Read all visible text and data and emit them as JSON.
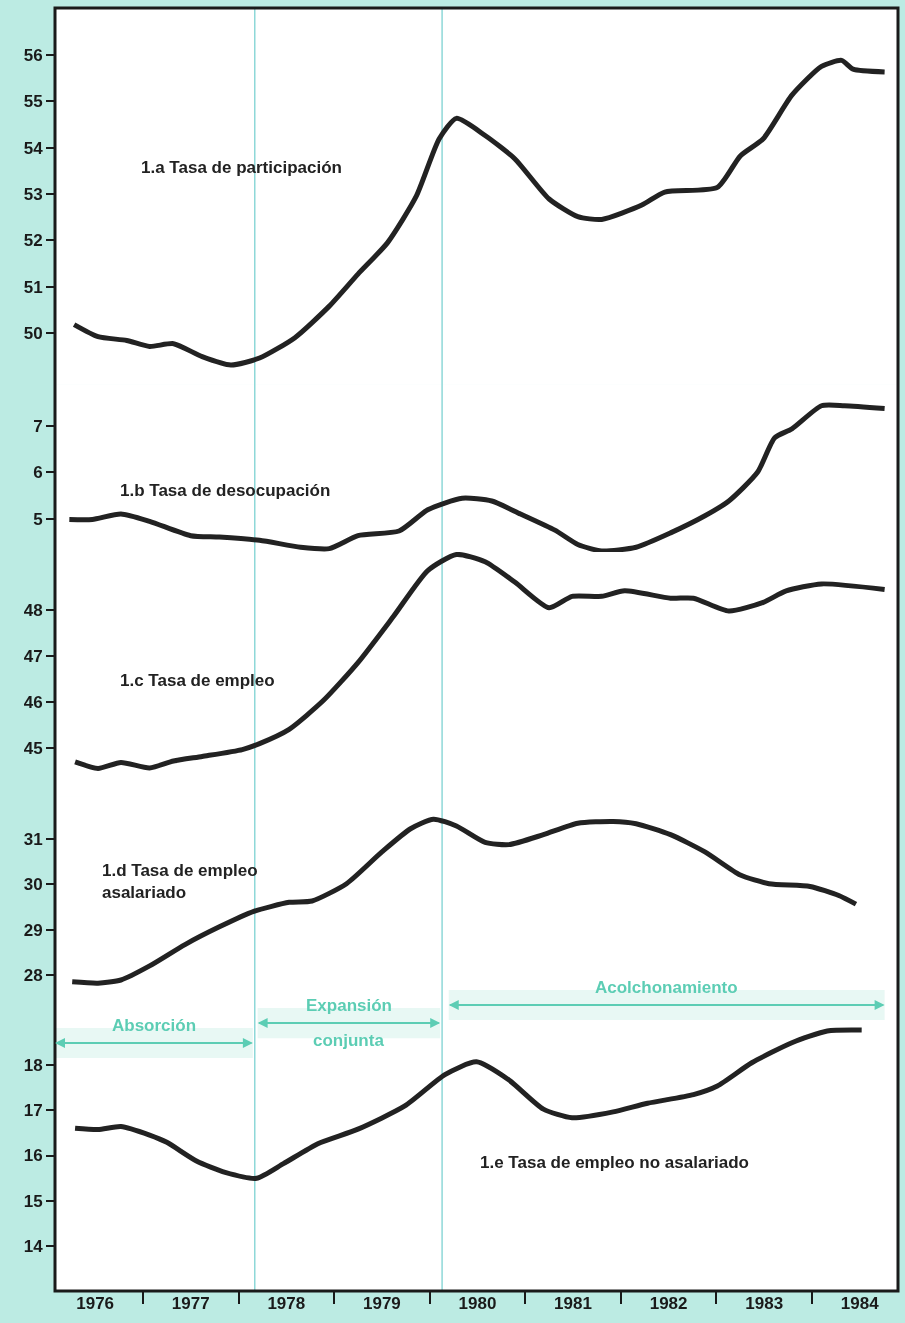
{
  "chart_data": [
    {
      "type": "line",
      "xlim": [
        1976.08,
        1984.9
      ],
      "ylim": [
        48.88,
        57.01
      ],
      "yticks": [
        50,
        51,
        52,
        53,
        54,
        55,
        56
      ],
      "tick_labels": "y",
      "grid": false,
      "legend": false,
      "marker": "none",
      "line_style": "solid",
      "series": [
        {
          "name": "1.a Tasa de participación",
          "color": "#222222",
          "x": [
            1976.28,
            1976.53,
            1976.83,
            1977.07,
            1977.32,
            1977.62,
            1977.92,
            1978.22,
            1978.59,
            1978.95,
            1979.25,
            1979.56,
            1979.86,
            1980.1,
            1980.28,
            1980.58,
            1980.89,
            1981.25,
            1981.55,
            1981.8,
            1982.22,
            1982.46,
            1983.01,
            1983.25,
            1983.49,
            1983.79,
            1984.1,
            1984.31,
            1984.43,
            1984.76
          ],
          "values": [
            50.18,
            49.92,
            49.84,
            49.71,
            49.77,
            49.49,
            49.31,
            49.46,
            49.9,
            50.58,
            51.27,
            51.95,
            52.95,
            54.19,
            54.63,
            54.26,
            53.76,
            52.89,
            52.51,
            52.45,
            52.76,
            53.04,
            53.14,
            53.82,
            54.19,
            55.13,
            55.75,
            55.88,
            55.69,
            55.63
          ]
        }
      ],
      "ref_lines": [
        {
          "axis": "x",
          "value": 1978.17,
          "color": "#8ed8d8"
        },
        {
          "axis": "x",
          "value": 1980.13,
          "color": "#8ed8d8"
        }
      ]
    },
    {
      "type": "line",
      "xlim": [
        1976.08,
        1984.9
      ],
      "ylim": [
        4.277,
        7.89
      ],
      "yticks": [
        5,
        6,
        7
      ],
      "tick_labels": "y",
      "grid": false,
      "legend": false,
      "marker": "none",
      "line_style": "solid",
      "series": [
        {
          "name": "1.b Tasa de desocupación",
          "color": "#222222",
          "x": [
            1976.23,
            1976.47,
            1976.77,
            1977.07,
            1977.5,
            1977.8,
            1978.22,
            1978.65,
            1978.95,
            1979.25,
            1979.68,
            1979.98,
            1980.34,
            1980.65,
            1980.95,
            1981.31,
            1981.55,
            1981.8,
            1982.16,
            1982.52,
            1982.88,
            1983.13,
            1983.43,
            1983.61,
            1983.79,
            1984.1,
            1984.34,
            1984.76
          ],
          "values": [
            4.98,
            4.98,
            5.1,
            4.94,
            4.63,
            4.6,
            4.53,
            4.38,
            4.35,
            4.63,
            4.73,
            5.19,
            5.44,
            5.38,
            5.1,
            4.75,
            4.44,
            4.3,
            4.38,
            4.69,
            5.06,
            5.38,
            6.0,
            6.75,
            6.94,
            7.44,
            7.44,
            7.38
          ]
        }
      ],
      "ref_lines": [
        {
          "axis": "x",
          "value": 1978.17,
          "color": "#8ed8d8"
        },
        {
          "axis": "x",
          "value": 1980.13,
          "color": "#8ed8d8"
        }
      ]
    },
    {
      "type": "line",
      "xlim": [
        1976.08,
        1984.9
      ],
      "ylim": [
        43.95,
        49.254
      ],
      "yticks": [
        45,
        46,
        47,
        48
      ],
      "tick_labels": "y",
      "grid": false,
      "legend": false,
      "marker": "none",
      "line_style": "solid",
      "series": [
        {
          "name": "1.c Tasa de empleo",
          "color": "#222222",
          "x": [
            1976.29,
            1976.53,
            1976.77,
            1977.07,
            1977.32,
            1977.62,
            1978.04,
            1978.22,
            1978.53,
            1978.89,
            1979.25,
            1979.62,
            1979.98,
            1980.28,
            1980.58,
            1980.89,
            1981.25,
            1981.49,
            1981.8,
            1982.04,
            1982.52,
            1982.76,
            1983.13,
            1983.49,
            1983.73,
            1984.1,
            1984.76
          ],
          "values": [
            44.69,
            44.55,
            44.68,
            44.56,
            44.71,
            44.81,
            44.96,
            45.09,
            45.4,
            46.03,
            46.85,
            47.85,
            48.85,
            49.2,
            49.04,
            48.6,
            48.04,
            48.29,
            48.29,
            48.41,
            48.25,
            48.25,
            47.97,
            48.16,
            48.41,
            48.56,
            48.44
          ]
        }
      ],
      "ref_lines": [
        {
          "axis": "x",
          "value": 1978.17,
          "color": "#8ed8d8"
        },
        {
          "axis": "x",
          "value": 1980.13,
          "color": "#8ed8d8"
        }
      ]
    },
    {
      "type": "line",
      "xlim": [
        1976.08,
        1984.9
      ],
      "ylim": [
        27.67,
        31.94
      ],
      "yticks": [
        28,
        29,
        30,
        31
      ],
      "tick_labels": "y",
      "grid": false,
      "legend": false,
      "marker": "none",
      "line_style": "solid",
      "series": [
        {
          "name": "1.d Tasa de empleo\nasalariado",
          "color": "#222222",
          "x": [
            1976.26,
            1976.53,
            1976.77,
            1977.07,
            1977.44,
            1977.8,
            1978.16,
            1978.53,
            1978.77,
            1979.13,
            1979.5,
            1979.8,
            1980.04,
            1980.28,
            1980.58,
            1980.83,
            1981.19,
            1981.55,
            1981.92,
            1982.16,
            1982.52,
            1982.88,
            1983.25,
            1983.55,
            1983.98,
            1984.28,
            1984.46
          ],
          "values": [
            27.85,
            27.82,
            27.89,
            28.2,
            28.67,
            29.06,
            29.4,
            29.6,
            29.63,
            30.01,
            30.71,
            31.22,
            31.43,
            31.28,
            30.92,
            30.87,
            31.09,
            31.34,
            31.38,
            31.33,
            31.09,
            30.71,
            30.2,
            30.01,
            29.95,
            29.75,
            29.56
          ]
        }
      ],
      "ref_lines": [
        {
          "axis": "x",
          "value": 1978.17,
          "color": "#8ed8d8"
        },
        {
          "axis": "x",
          "value": 1980.13,
          "color": "#8ed8d8"
        }
      ]
    },
    {
      "type": "line",
      "xlim": [
        1976.08,
        1984.9
      ],
      "xticks": [
        {
          "value": 1976.5,
          "label": "1976"
        },
        {
          "value": 1977.5,
          "label": "1977"
        },
        {
          "value": 1978.5,
          "label": "1978"
        },
        {
          "value": 1979.5,
          "label": "1979"
        },
        {
          "value": 1980.5,
          "label": "1980"
        },
        {
          "value": 1981.5,
          "label": "1981"
        },
        {
          "value": 1982.5,
          "label": "1982"
        },
        {
          "value": 1983.5,
          "label": "1983"
        },
        {
          "value": 1984.5,
          "label": "1984"
        },
        {
          "value": 1977,
          "label": null
        },
        {
          "value": 1978,
          "label": null
        },
        {
          "value": 1979,
          "label": null
        },
        {
          "value": 1980,
          "label": null
        },
        {
          "value": 1981,
          "label": null
        },
        {
          "value": 1982,
          "label": null
        },
        {
          "value": 1983,
          "label": null
        },
        {
          "value": 1984,
          "label": null
        }
      ],
      "ylim": [
        13.02,
        19.64
      ],
      "yticks": [
        14,
        15,
        16,
        17,
        18
      ],
      "grid": false,
      "legend": false,
      "marker": "none",
      "line_style": "solid",
      "series": [
        {
          "name": "1.e Tasa de empleo no asalariado",
          "color": "#222222",
          "x": [
            1976.29,
            1976.53,
            1976.77,
            1977.07,
            1977.25,
            1977.56,
            1977.86,
            1978.19,
            1978.47,
            1978.83,
            1979.25,
            1979.74,
            1980.16,
            1980.49,
            1980.83,
            1981.19,
            1981.49,
            1981.92,
            1982.28,
            1982.76,
            1983.01,
            1983.37,
            1983.79,
            1984.16,
            1984.52
          ],
          "values": [
            16.6,
            16.57,
            16.64,
            16.45,
            16.29,
            15.88,
            15.63,
            15.5,
            15.82,
            16.26,
            16.58,
            17.09,
            17.78,
            18.06,
            17.66,
            17.02,
            16.83,
            16.96,
            17.15,
            17.34,
            17.53,
            18.04,
            18.48,
            18.74,
            18.76
          ]
        }
      ],
      "ref_lines": [
        {
          "axis": "x",
          "value": 1978.17,
          "color": "#8ed8d8"
        },
        {
          "axis": "x",
          "value": 1980.13,
          "color": "#8ed8d8"
        }
      ],
      "bands": [
        {
          "axis": "x",
          "from": 1976.08,
          "to": 1978.15,
          "label": "Absorción",
          "color": "#5ccdb4"
        },
        {
          "axis": "x",
          "from": 1978.2,
          "to": 1980.11,
          "label": "Expansión\nconjunta",
          "color": "#5ccdb4"
        },
        {
          "axis": "x",
          "from": 1980.2,
          "to": 1984.76,
          "label": "Acolchonamiento",
          "color": "#5ccdb4"
        }
      ]
    }
  ]
}
